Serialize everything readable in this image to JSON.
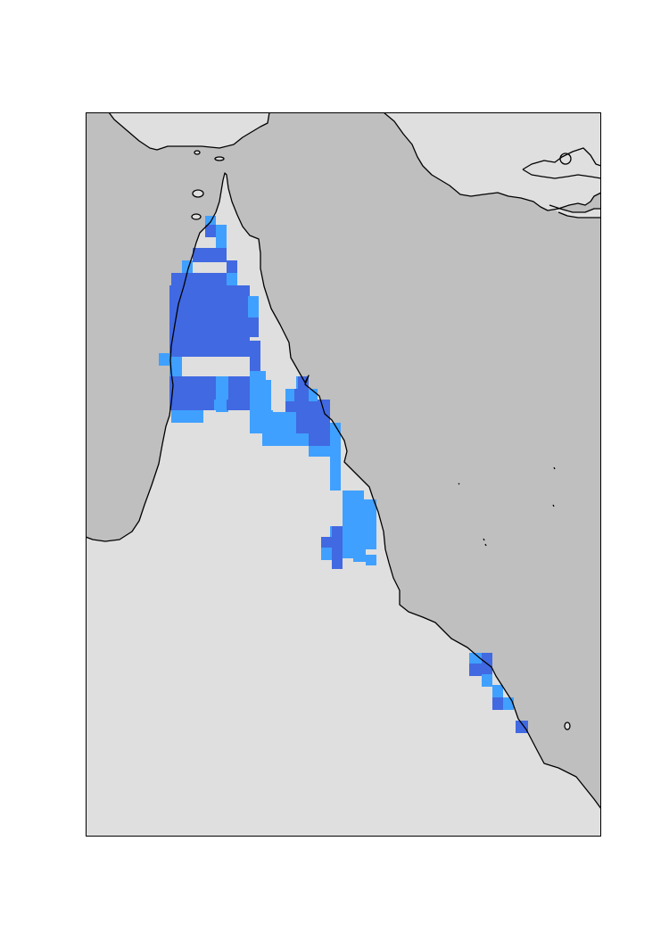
{
  "map": {
    "colors": {
      "land": "#dfdfdf",
      "sea": "#bfbfbf",
      "coastline": "#000000",
      "frame": "#000000",
      "class_light": "#40a0ff",
      "class_dark": "#4169e1"
    },
    "legend": null,
    "title": ""
  }
}
